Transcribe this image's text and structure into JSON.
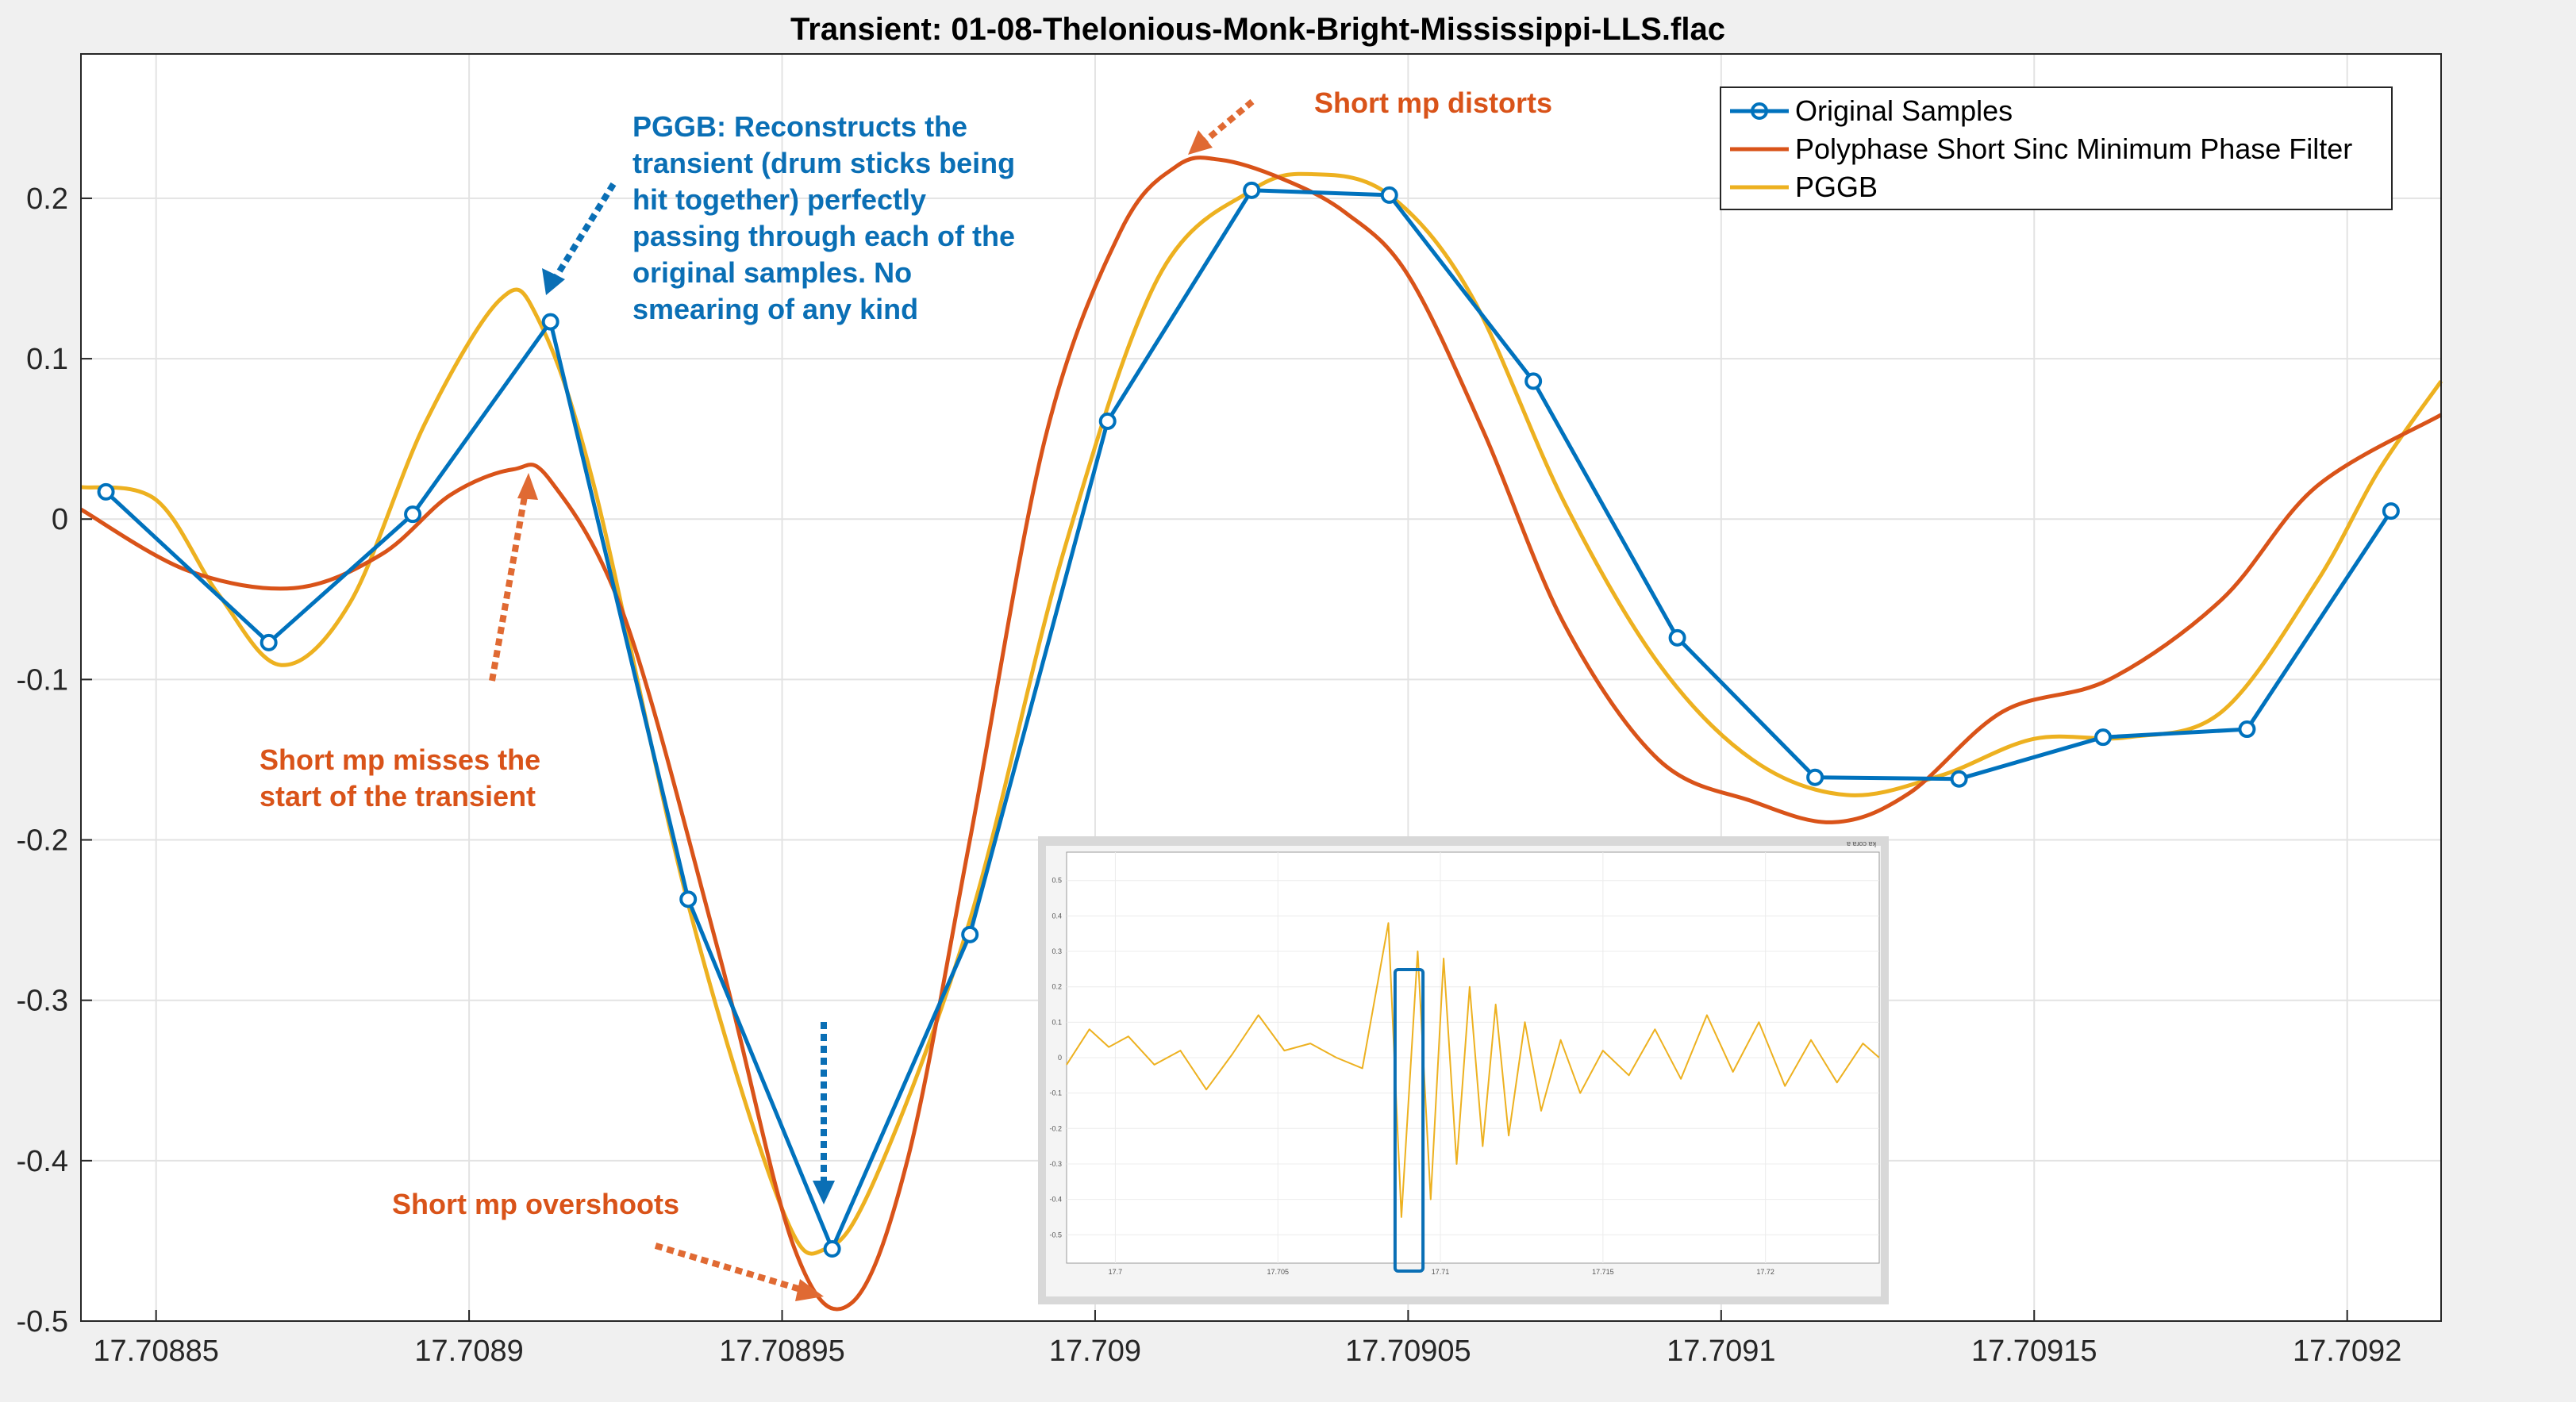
{
  "chart_data": [
    {
      "type": "line",
      "title": "Transient: 01-08-Thelonious-Monk-Bright-Mississippi-LLS.flac",
      "xlabel": "",
      "ylabel": "",
      "xlim": [
        17.708838,
        17.709215
      ],
      "ylim": [
        -0.5,
        0.29
      ],
      "x_ticks": [
        17.70885,
        17.7089,
        17.70895,
        17.709,
        17.70905,
        17.7091,
        17.70915,
        17.7092
      ],
      "x_tick_labels": [
        "17.70885",
        "17.7089",
        "17.70895",
        "17.709",
        "17.70905",
        "17.7091",
        "17.70915",
        "17.7092"
      ],
      "y_ticks": [
        0.2,
        0.1,
        0,
        -0.1,
        -0.2,
        -0.3,
        -0.4,
        -0.5
      ],
      "y_tick_labels": [
        "0.2",
        "0.1",
        "0",
        "-0.1",
        "-0.2",
        "-0.3",
        "-0.4",
        "-0.5"
      ],
      "grid": true,
      "legend_position": "top-right",
      "series": [
        {
          "name": "Original Samples",
          "color": "#0072bd",
          "marker": "circle",
          "x": [
            17.708842,
            17.708868,
            17.708891,
            17.708913,
            17.708935,
            17.708958,
            17.70898,
            17.709002,
            17.709025,
            17.709047,
            17.70907,
            17.709093,
            17.709115,
            17.709138,
            17.709161,
            17.709184,
            17.709207
          ],
          "y": [
            0.017,
            -0.077,
            0.003,
            0.123,
            -0.237,
            -0.455,
            -0.259,
            0.061,
            0.205,
            0.202,
            0.086,
            -0.074,
            -0.161,
            -0.162,
            -0.136,
            -0.131,
            0.005
          ]
        },
        {
          "name": "Polyphase Short Sinc Minimum Phase Filter",
          "color": "#d95319",
          "x": [
            17.708838,
            17.708855,
            17.708872,
            17.708886,
            17.708897,
            17.708907,
            17.708913,
            17.708925,
            17.70894,
            17.708952,
            17.708961,
            17.70897,
            17.70898,
            17.708992,
            17.709004,
            17.709013,
            17.70902,
            17.70903,
            17.70904,
            17.70905,
            17.709062,
            17.709075,
            17.70909,
            17.709105,
            17.709118,
            17.70913,
            17.709145,
            17.709162,
            17.70918,
            17.709195,
            17.709215
          ],
          "y": [
            0.006,
            -0.032,
            -0.043,
            -0.022,
            0.015,
            0.031,
            0.024,
            -0.063,
            -0.272,
            -0.455,
            -0.489,
            -0.4,
            -0.2,
            0.05,
            0.179,
            0.22,
            0.224,
            0.212,
            0.191,
            0.152,
            0.055,
            -0.066,
            -0.15,
            -0.176,
            -0.189,
            -0.171,
            -0.12,
            -0.1,
            -0.05,
            0.02,
            0.065
          ]
        },
        {
          "name": "PGGB",
          "color": "#edb120",
          "x": [
            17.708838,
            17.70885,
            17.70886,
            17.70887,
            17.708881,
            17.708893,
            17.708905,
            17.708911,
            17.70892,
            17.708935,
            17.70895,
            17.708957,
            17.708965,
            17.70898,
            17.708995,
            17.70901,
            17.709025,
            17.709035,
            17.709047,
            17.70906,
            17.709075,
            17.70909,
            17.709105,
            17.70912,
            17.709135,
            17.70915,
            17.709165,
            17.70918,
            17.709195,
            17.709205,
            17.709215
          ],
          "y": [
            0.02,
            0.012,
            -0.047,
            -0.091,
            -0.052,
            0.06,
            0.137,
            0.125,
            0.02,
            -0.24,
            -0.43,
            -0.455,
            -0.41,
            -0.25,
            -0.02,
            0.15,
            0.205,
            0.215,
            0.202,
            0.14,
            0.01,
            -0.09,
            -0.15,
            -0.172,
            -0.16,
            -0.137,
            -0.136,
            -0.12,
            -0.04,
            0.03,
            0.086
          ]
        }
      ],
      "annotations": {
        "pggb_note": [
          "PGGB: Reconstructs the",
          "transient (drum sticks being",
          "hit together) perfectly",
          "passing through each of the",
          "original samples. No",
          "smearing of any kind"
        ],
        "distorts_note": "Short mp distorts",
        "misses_note": [
          "Short mp misses the",
          "start of the transient"
        ],
        "overshoots_note": "Short mp overshoots"
      }
    },
    {
      "type": "line",
      "title": "",
      "xlabel": "",
      "ylabel": "",
      "xlim": [
        17.6985,
        17.7235
      ],
      "ylim": [
        -0.58,
        0.58
      ],
      "x_tick_labels": [
        "17.7",
        "17.705",
        "17.71",
        "17.715",
        "17.72"
      ],
      "x_ticks": [
        17.7,
        17.705,
        17.71,
        17.715,
        17.72
      ],
      "y_tick_labels": [
        "0.5",
        "0.4",
        "0.3",
        "0.2",
        "0.1",
        "0",
        "-0.1",
        "-0.2",
        "-0.3",
        "-0.4",
        "-0.5"
      ],
      "y_ticks": [
        0.5,
        0.4,
        0.3,
        0.2,
        0.1,
        0,
        -0.1,
        -0.2,
        -0.3,
        -0.4,
        -0.5
      ],
      "grid": true,
      "highlight_window": [
        17.70885,
        17.70922
      ],
      "series": [
        {
          "color": "#edb120",
          "x": [
            17.6985,
            17.6992,
            17.6998,
            17.7004,
            17.7012,
            17.702,
            17.7028,
            17.7036,
            17.7044,
            17.7052,
            17.706,
            17.7068,
            17.7076,
            17.7084,
            17.7088,
            17.7093,
            17.7097,
            17.7101,
            17.7105,
            17.7109,
            17.7113,
            17.7117,
            17.7121,
            17.7126,
            17.7131,
            17.7137,
            17.7143,
            17.715,
            17.7158,
            17.7166,
            17.7174,
            17.7182,
            17.719,
            17.7198,
            17.7206,
            17.7214,
            17.7222,
            17.723,
            17.7235
          ],
          "y": [
            -0.02,
            0.08,
            0.03,
            0.06,
            -0.02,
            0.02,
            -0.09,
            0.01,
            0.12,
            0.02,
            0.04,
            0.0,
            -0.03,
            0.38,
            -0.45,
            0.3,
            -0.4,
            0.28,
            -0.3,
            0.2,
            -0.25,
            0.15,
            -0.22,
            0.1,
            -0.15,
            0.05,
            -0.1,
            0.02,
            -0.05,
            0.08,
            -0.06,
            0.12,
            -0.04,
            0.1,
            -0.08,
            0.05,
            -0.07,
            0.04,
            0.0
          ]
        }
      ]
    }
  ],
  "inset": {
    "watermark": "ɐ ɐɹoɔ ɐʞ"
  }
}
